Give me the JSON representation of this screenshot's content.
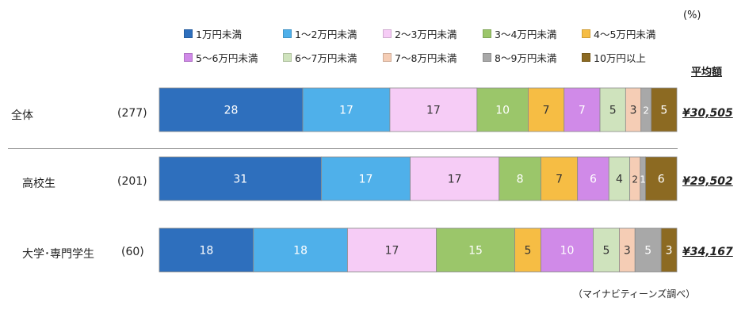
{
  "unit_label": "(%)",
  "avg_header": "平均額",
  "source": "（マイナビティーンズ調べ）",
  "colors": [
    "#2e6fbd",
    "#4fb0ea",
    "#f6ccf6",
    "#9bc66a",
    "#f6bd44",
    "#d08ae8",
    "#cfe3bd",
    "#f5cdb5",
    "#a8a8a8",
    "#8c6a22"
  ],
  "legend": [
    "1万円未満",
    "1～2万円未満",
    "2～3万円未満",
    "3～4万円未満",
    "4～5万円未満",
    "5～6万円未満",
    "6～7万円未満",
    "7～8万円未満",
    "8～9万円未満",
    "10万円以上"
  ],
  "rows": [
    {
      "label": "全体",
      "count": "(277)",
      "avg": "¥30,505"
    },
    {
      "label": "高校生",
      "count": "(201)",
      "avg": "¥29,502"
    },
    {
      "label": "大学･専門学生",
      "count": "(60)",
      "avg": "¥34,167"
    }
  ],
  "chart_data": {
    "type": "bar",
    "orientation": "horizontal-stacked-100",
    "unit": "%",
    "categories": [
      "全体",
      "高校生",
      "大学･専門学生"
    ],
    "series": [
      {
        "name": "1万円未満",
        "values": [
          28,
          31,
          18
        ]
      },
      {
        "name": "1～2万円未満",
        "values": [
          17,
          17,
          18
        ]
      },
      {
        "name": "2～3万円未満",
        "values": [
          17,
          17,
          17
        ]
      },
      {
        "name": "3～4万円未満",
        "values": [
          10,
          8,
          15
        ]
      },
      {
        "name": "4～5万円未満",
        "values": [
          7,
          7,
          5
        ]
      },
      {
        "name": "5～6万円未満",
        "values": [
          7,
          6,
          10
        ]
      },
      {
        "name": "6～7万円未満",
        "values": [
          5,
          4,
          5
        ]
      },
      {
        "name": "7～8万円未満",
        "values": [
          3,
          2,
          3
        ]
      },
      {
        "name": "8～9万円未満",
        "values": [
          2,
          1,
          5
        ]
      },
      {
        "name": "10万円以上",
        "values": [
          5,
          6,
          3
        ]
      }
    ],
    "legend_position": "top",
    "grid": false
  }
}
